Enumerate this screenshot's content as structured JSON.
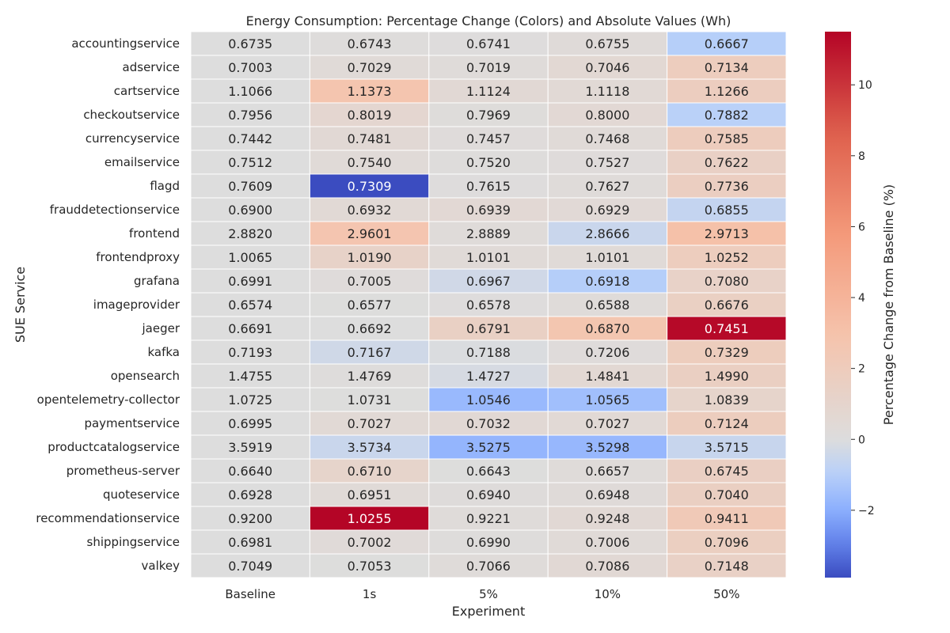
{
  "chart_data": {
    "type": "heatmap",
    "title": "Energy Consumption: Percentage Change (Colors) and Absolute Values (Wh)",
    "xlabel": "Experiment",
    "ylabel": "SUE Service",
    "colorbar_label": "Percentage Change from Baseline (%)",
    "colorbar_range": [
      -3.9,
      11.5
    ],
    "colorbar_ticks": [
      -2,
      0,
      2,
      4,
      6,
      8,
      10
    ],
    "colormap": "coolwarm",
    "grid": false,
    "columns": [
      "Baseline",
      "1s",
      "5%",
      "10%",
      "50%"
    ],
    "rows": [
      "accountingservice",
      "adservice",
      "cartservice",
      "checkoutservice",
      "currencyservice",
      "emailservice",
      "flagd",
      "frauddetectionservice",
      "frontend",
      "frontendproxy",
      "grafana",
      "imageprovider",
      "jaeger",
      "kafka",
      "opensearch",
      "opentelemetry-collector",
      "paymentservice",
      "productcatalogservice",
      "prometheus-server",
      "quoteservice",
      "recommendationservice",
      "shippingservice",
      "valkey"
    ],
    "values": [
      [
        "0.6735",
        "0.6743",
        "0.6741",
        "0.6755",
        "0.6667"
      ],
      [
        "0.7003",
        "0.7029",
        "0.7019",
        "0.7046",
        "0.7134"
      ],
      [
        "1.1066",
        "1.1373",
        "1.1124",
        "1.1118",
        "1.1266"
      ],
      [
        "0.7956",
        "0.8019",
        "0.7969",
        "0.8000",
        "0.7882"
      ],
      [
        "0.7442",
        "0.7481",
        "0.7457",
        "0.7468",
        "0.7585"
      ],
      [
        "0.7512",
        "0.7540",
        "0.7520",
        "0.7527",
        "0.7622"
      ],
      [
        "0.7609",
        "0.7309",
        "0.7615",
        "0.7627",
        "0.7736"
      ],
      [
        "0.6900",
        "0.6932",
        "0.6939",
        "0.6929",
        "0.6855"
      ],
      [
        "2.8820",
        "2.9601",
        "2.8889",
        "2.8666",
        "2.9713"
      ],
      [
        "1.0065",
        "1.0190",
        "1.0101",
        "1.0101",
        "1.0252"
      ],
      [
        "0.6991",
        "0.7005",
        "0.6967",
        "0.6918",
        "0.7080"
      ],
      [
        "0.6574",
        "0.6577",
        "0.6578",
        "0.6588",
        "0.6676"
      ],
      [
        "0.6691",
        "0.6692",
        "0.6791",
        "0.6870",
        "0.7451"
      ],
      [
        "0.7193",
        "0.7167",
        "0.7188",
        "0.7206",
        "0.7329"
      ],
      [
        "1.4755",
        "1.4769",
        "1.4727",
        "1.4841",
        "1.4990"
      ],
      [
        "1.0725",
        "1.0731",
        "1.0546",
        "1.0565",
        "1.0839"
      ],
      [
        "0.6995",
        "0.7027",
        "0.7032",
        "0.7027",
        "0.7124"
      ],
      [
        "3.5919",
        "3.5734",
        "3.5275",
        "3.5298",
        "3.5715"
      ],
      [
        "0.6640",
        "0.6710",
        "0.6643",
        "0.6657",
        "0.6745"
      ],
      [
        "0.6928",
        "0.6951",
        "0.6940",
        "0.6948",
        "0.7040"
      ],
      [
        "0.9200",
        "1.0255",
        "0.9221",
        "0.9248",
        "0.9411"
      ],
      [
        "0.6981",
        "0.7002",
        "0.6990",
        "0.7006",
        "0.7096"
      ],
      [
        "0.7049",
        "0.7053",
        "0.7066",
        "0.7086",
        "0.7148"
      ]
    ]
  }
}
